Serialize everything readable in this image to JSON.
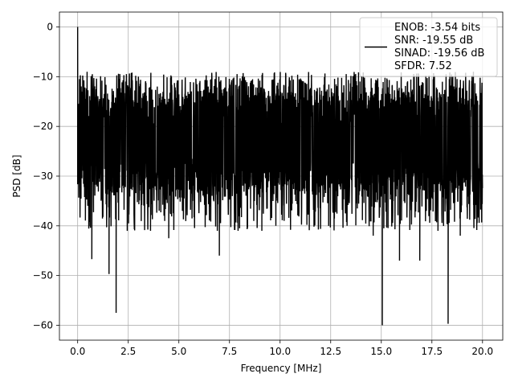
{
  "chart_data": {
    "type": "line",
    "title": "",
    "xlabel": "Frequency [MHz]",
    "ylabel": "PSD [dB]",
    "xlim": [
      -0.9,
      21.0
    ],
    "ylim": [
      -63.0,
      3.0
    ],
    "xticks": [
      0.0,
      2.5,
      5.0,
      7.5,
      10.0,
      12.5,
      15.0,
      17.5,
      20.0
    ],
    "xtick_labels": [
      "0.0",
      "2.5",
      "5.0",
      "7.5",
      "10.0",
      "12.5",
      "15.0",
      "17.5",
      "20.0"
    ],
    "yticks": [
      0,
      -10,
      -20,
      -30,
      -40,
      -50,
      -60
    ],
    "ytick_labels": [
      "0",
      "−10",
      "−20",
      "−30",
      "−40",
      "−50",
      "−60"
    ],
    "grid": true,
    "legend_position": "top-right",
    "series": [
      {
        "name": "ENOB: -3.54 bits\nSNR: -19.55 dB\nSINAD: -19.56 dB\nSFDR: 7.52",
        "color": "#000000",
        "legend_lines": [
          "ENOB: -3.54 bits",
          "SNR: -19.55 dB",
          "SINAD: -19.56 dB",
          "SFDR: 7.52"
        ],
        "x_range": [
          0.0,
          20.0
        ],
        "noise_floor_mean": -22.5,
        "noise_floor_upper": -12.0,
        "noise_floor_lower": -33.0,
        "peaks": [
          {
            "x": 0.0,
            "y": 0.0
          }
        ],
        "dips": [
          {
            "x": 0.7,
            "y": -46.7
          },
          {
            "x": 1.55,
            "y": -49.7
          },
          {
            "x": 1.9,
            "y": -57.5
          },
          {
            "x": 2.45,
            "y": -41.0
          },
          {
            "x": 3.6,
            "y": -41.0
          },
          {
            "x": 4.5,
            "y": -42.5
          },
          {
            "x": 6.9,
            "y": -41.0
          },
          {
            "x": 7.0,
            "y": -46.0
          },
          {
            "x": 8.0,
            "y": -40.5
          },
          {
            "x": 9.1,
            "y": -41.0
          },
          {
            "x": 10.2,
            "y": -39.0
          },
          {
            "x": 12.4,
            "y": -40.0
          },
          {
            "x": 14.6,
            "y": -42.0
          },
          {
            "x": 15.05,
            "y": -60.0
          },
          {
            "x": 15.9,
            "y": -47.0
          },
          {
            "x": 16.9,
            "y": -47.0
          },
          {
            "x": 17.8,
            "y": -41.0
          },
          {
            "x": 18.3,
            "y": -59.7
          },
          {
            "x": 18.9,
            "y": -42.0
          }
        ]
      }
    ]
  }
}
